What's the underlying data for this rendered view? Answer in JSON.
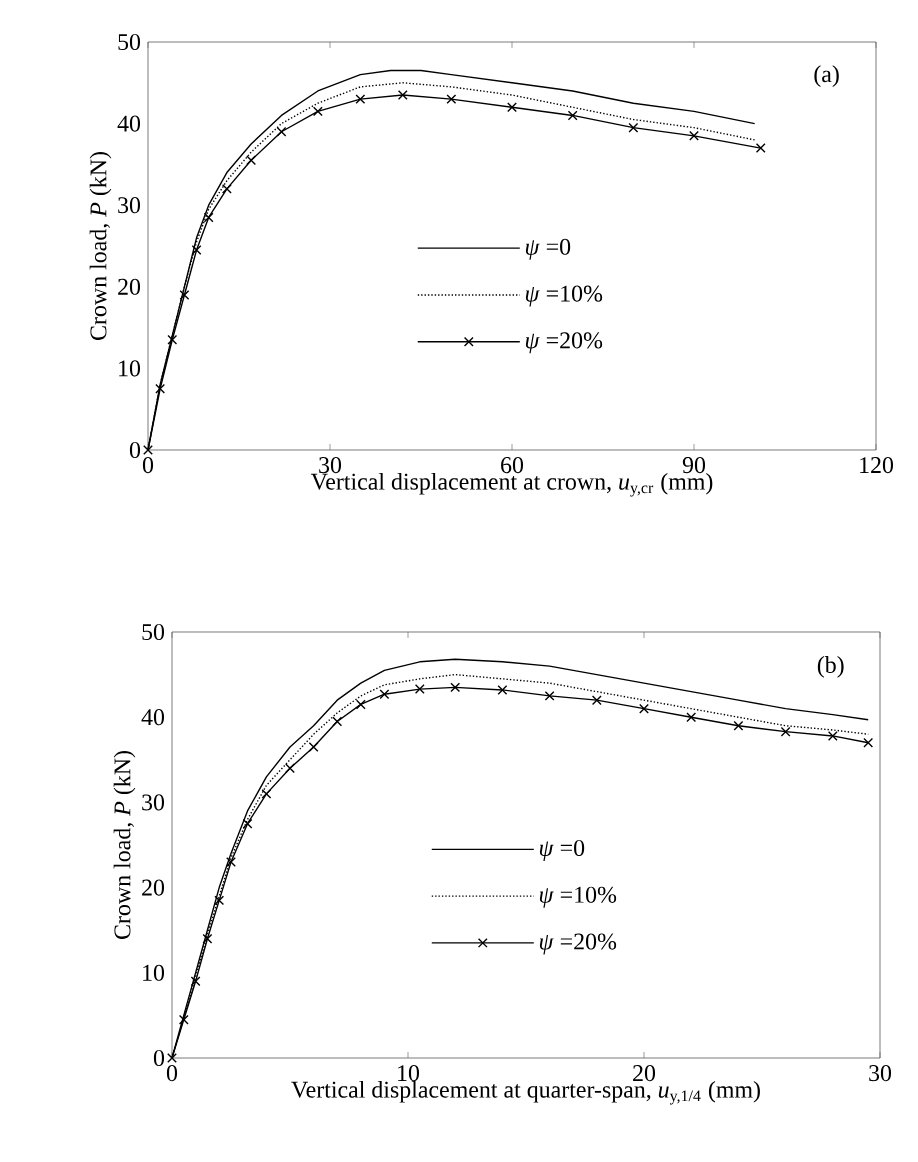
{
  "chart_data": [
    {
      "type": "line",
      "xlabel": "Vertical displacement at crown, *u*$_{y,cr}$ (mm)",
      "ylabel": "Crown load, *P* (kN)",
      "xlim": [
        0,
        120
      ],
      "ylim": [
        0,
        50
      ],
      "xticks": [
        0,
        30,
        60,
        90,
        120
      ],
      "yticks": [
        0,
        10,
        20,
        30,
        40,
        50
      ],
      "legend": "center",
      "annotations": [
        "(a)"
      ],
      "series": [
        {
          "name": "*ψ* =0",
          "color": "#000000",
          "line_style": "solid",
          "marker": "none",
          "x": [
            0,
            2,
            4,
            6,
            8,
            10,
            13,
            17,
            22,
            28,
            35,
            40,
            45,
            50,
            60,
            70,
            80,
            90,
            100
          ],
          "values": [
            0,
            8,
            14,
            20,
            26,
            30,
            34,
            37.5,
            41,
            44,
            46,
            46.5,
            46.5,
            46,
            45,
            44,
            42.5,
            41.5,
            40
          ]
        },
        {
          "name": "*ψ* =10%",
          "color": "#000000",
          "line_style": "dotted",
          "marker": "none",
          "x": [
            0,
            2,
            4,
            6,
            8,
            10,
            13,
            17,
            22,
            28,
            35,
            42,
            50,
            60,
            70,
            80,
            90,
            100
          ],
          "values": [
            0,
            8,
            14,
            20,
            25.5,
            29.5,
            33,
            36.5,
            40,
            42.5,
            44.5,
            45,
            44.5,
            43.5,
            42,
            40.5,
            39.5,
            38
          ]
        },
        {
          "name": "*ψ* =20%",
          "color": "#000000",
          "line_style": "solid",
          "marker": "cross",
          "x": [
            0,
            2,
            4,
            6,
            8,
            10,
            13,
            17,
            22,
            28,
            35,
            42,
            50,
            60,
            70,
            80,
            90,
            101
          ],
          "values": [
            0,
            7.5,
            13.5,
            19,
            24.5,
            28.5,
            32,
            35.5,
            39,
            41.5,
            43,
            43.5,
            43,
            42,
            41,
            39.5,
            38.5,
            37
          ]
        }
      ]
    },
    {
      "type": "line",
      "xlabel": "Vertical displacement at quarter-span, *u*$_{y,1/4}$ (mm)",
      "ylabel": "Crown load, *P* (kN)",
      "xlim": [
        0,
        30
      ],
      "ylim": [
        0,
        50
      ],
      "xticks": [
        0,
        10,
        20,
        30
      ],
      "yticks": [
        0,
        10,
        20,
        30,
        40,
        50
      ],
      "legend": "center",
      "annotations": [
        "(b)"
      ],
      "series": [
        {
          "name": "*ψ* =0",
          "color": "#000000",
          "line_style": "solid",
          "marker": "none",
          "x": [
            0,
            0.5,
            1,
            1.5,
            2,
            2.5,
            3.2,
            4,
            5,
            6,
            7,
            8,
            9,
            10.5,
            12,
            14,
            16,
            18,
            20,
            22,
            24,
            26,
            28,
            29.5
          ],
          "values": [
            0,
            5,
            10,
            15,
            20,
            24,
            29,
            33,
            36.5,
            39,
            42,
            44,
            45.5,
            46.5,
            46.8,
            46.5,
            46,
            45,
            44,
            43,
            42,
            41,
            40.3,
            39.7
          ]
        },
        {
          "name": "*ψ* =10%",
          "color": "#000000",
          "line_style": "dotted",
          "marker": "none",
          "x": [
            0,
            0.5,
            1,
            1.5,
            2,
            2.5,
            3.2,
            4,
            5,
            6,
            7,
            8,
            9,
            10.5,
            12,
            14,
            16,
            18,
            20,
            22,
            24,
            26,
            28,
            29.5
          ],
          "values": [
            0,
            4.8,
            9.5,
            14.5,
            19,
            23.5,
            28,
            32,
            35,
            38,
            40.5,
            42.5,
            43.8,
            44.5,
            45,
            44.5,
            44,
            43,
            42,
            41,
            40,
            39,
            38.5,
            38
          ]
        },
        {
          "name": "*ψ* =20%",
          "color": "#000000",
          "line_style": "solid",
          "marker": "cross",
          "x": [
            0,
            0.5,
            1,
            1.5,
            2,
            2.5,
            3.2,
            4,
            5,
            6,
            7,
            8,
            9,
            10.5,
            12,
            14,
            16,
            18,
            20,
            22,
            24,
            26,
            28,
            29.5
          ],
          "values": [
            0,
            4.5,
            9,
            14,
            18.5,
            23,
            27.5,
            31,
            34,
            36.5,
            39.5,
            41.5,
            42.7,
            43.3,
            43.5,
            43.2,
            42.5,
            42,
            41,
            40,
            39,
            38.3,
            37.8,
            37
          ]
        }
      ]
    }
  ]
}
